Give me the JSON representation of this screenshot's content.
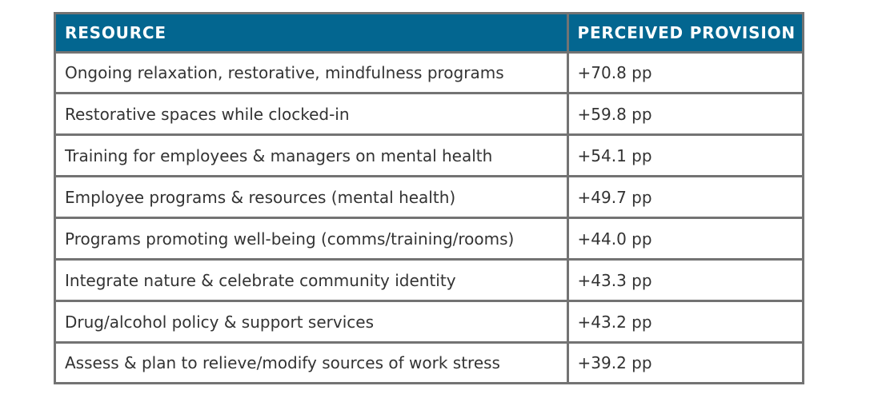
{
  "chart_data": {
    "type": "table",
    "headers": [
      "RESOURCE",
      "PERCEIVED PROVISION"
    ],
    "rows": [
      [
        "Ongoing relaxation, restorative, mindfulness programs",
        "+70.8 pp"
      ],
      [
        "Restorative spaces while clocked-in",
        "+59.8 pp"
      ],
      [
        "Training for employees & managers on mental health",
        "+54.1 pp"
      ],
      [
        "Employee programs & resources (mental health)",
        "+49.7 pp"
      ],
      [
        "Programs promoting well-being (comms/training/rooms)",
        "+44.0 pp"
      ],
      [
        "Integrate nature & celebrate community identity",
        "+43.3 pp"
      ],
      [
        "Drug/alcohol policy & support services",
        "+43.2 pp"
      ],
      [
        "Assess & plan to relieve/modify sources of work stress",
        "+39.2 pp"
      ]
    ],
    "values": [
      70.8,
      59.8,
      54.1,
      49.7,
      44.0,
      43.3,
      43.2,
      39.2
    ]
  },
  "colors": {
    "header_bg": "#036690",
    "header_text": "#ffffff",
    "border": "#737373",
    "cell_text": "#333333"
  }
}
